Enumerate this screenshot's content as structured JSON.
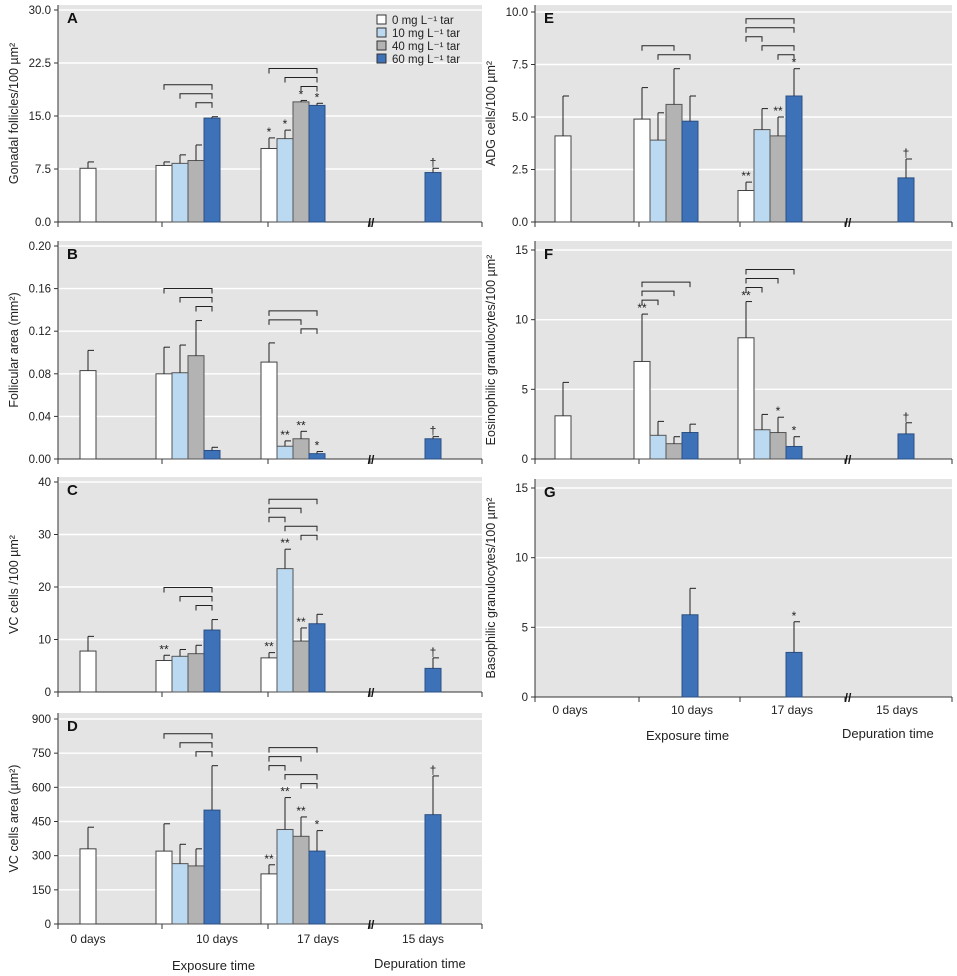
{
  "figure": {
    "legend": {
      "items": [
        {
          "label": "0 mg L⁻¹ tar",
          "color": "#ffffff"
        },
        {
          "label": "10 mg L⁻¹ tar",
          "color": "#bcd9f2"
        },
        {
          "label": "40 mg L⁻¹ tar",
          "color": "#b3b3b3"
        },
        {
          "label": "60 mg L⁻¹ tar",
          "color": "#3e72b8"
        }
      ]
    },
    "x_categories": [
      "0 days",
      "10 days",
      "17 days",
      "15 days"
    ],
    "x_title_exposure": "Exposure time",
    "x_title_depuration": "Depuration time",
    "axis_break_mark": "//"
  },
  "chart_data": [
    {
      "type": "bar",
      "panel": "A",
      "ylabel": "Gonadal follicles/100 µm²",
      "ylim": [
        0,
        30
      ],
      "yticks": [
        "0.0",
        "7.5",
        "15.0",
        "22.5",
        "30.0"
      ],
      "categories": [
        "0 days",
        "10 days",
        "17 days",
        "15 days"
      ],
      "series": [
        {
          "name": "0 mg L⁻¹ tar",
          "values": [
            7.6,
            8.0,
            10.4,
            null
          ],
          "errors": [
            0.9,
            0.5,
            1.5,
            null
          ],
          "marks": [
            "",
            "",
            "*",
            ""
          ]
        },
        {
          "name": "10 mg L⁻¹ tar",
          "values": [
            null,
            8.3,
            11.8,
            null
          ],
          "errors": [
            null,
            1.2,
            1.2,
            null
          ],
          "marks": [
            "",
            "",
            "*",
            ""
          ]
        },
        {
          "name": "40 mg L⁻¹ tar",
          "values": [
            null,
            8.7,
            17.0,
            null
          ],
          "errors": [
            null,
            2.2,
            0.2,
            null
          ],
          "marks": [
            "",
            "",
            "*",
            ""
          ]
        },
        {
          "name": "60 mg L⁻¹ tar",
          "values": [
            null,
            14.7,
            16.5,
            7.0
          ],
          "errors": [
            null,
            0.2,
            0.3,
            0.6
          ],
          "marks": [
            "",
            "",
            "*",
            "†"
          ]
        }
      ],
      "brackets": [
        [
          1,
          0,
          3,
          0
        ],
        [
          1,
          1,
          3,
          1
        ],
        [
          1,
          2,
          3,
          2
        ],
        [
          2,
          0,
          3,
          0
        ],
        [
          2,
          1,
          3,
          1
        ],
        [
          2,
          2,
          3,
          2
        ]
      ]
    },
    {
      "type": "bar",
      "panel": "B",
      "ylabel": "Follicular area (mm²)",
      "ylim": [
        0,
        0.2
      ],
      "yticks": [
        "0.00",
        "0.04",
        "0.08",
        "0.12",
        "0.16",
        "0.20"
      ],
      "categories": [
        "0 days",
        "10 days",
        "17 days",
        "15 days"
      ],
      "series": [
        {
          "name": "0 mg L⁻¹ tar",
          "values": [
            0.083,
            0.08,
            0.091,
            null
          ],
          "errors": [
            0.019,
            0.025,
            0.018,
            null
          ],
          "marks": [
            "",
            "",
            "",
            ""
          ]
        },
        {
          "name": "10 mg L⁻¹ tar",
          "values": [
            null,
            0.081,
            0.012,
            null
          ],
          "errors": [
            null,
            0.026,
            0.005,
            null
          ],
          "marks": [
            "",
            "",
            "**",
            ""
          ]
        },
        {
          "name": "40 mg L⁻¹ tar",
          "values": [
            null,
            0.097,
            0.019,
            null
          ],
          "errors": [
            null,
            0.033,
            0.007,
            null
          ],
          "marks": [
            "",
            "",
            "**",
            ""
          ]
        },
        {
          "name": "60 mg L⁻¹ tar",
          "values": [
            null,
            0.008,
            0.005,
            0.019
          ],
          "errors": [
            null,
            0.003,
            0.002,
            0.002
          ],
          "marks": [
            "",
            "",
            "*",
            "†"
          ]
        }
      ],
      "brackets": [
        [
          1,
          0,
          3,
          0
        ],
        [
          1,
          1,
          3,
          1
        ],
        [
          1,
          2,
          3,
          2
        ],
        [
          2,
          0,
          3,
          0
        ],
        [
          2,
          0,
          2,
          1
        ],
        [
          2,
          2,
          3,
          2
        ]
      ]
    },
    {
      "type": "bar",
      "panel": "C",
      "ylabel": "VC  cells /100 µm²",
      "ylim": [
        0,
        40
      ],
      "yticks": [
        "0",
        "10",
        "20",
        "30",
        "40"
      ],
      "categories": [
        "0 days",
        "10 days",
        "17 days",
        "15 days"
      ],
      "series": [
        {
          "name": "0 mg L⁻¹ tar",
          "values": [
            7.8,
            6.0,
            6.5,
            null
          ],
          "errors": [
            2.8,
            1.0,
            1.0,
            null
          ],
          "marks": [
            "",
            "**",
            "**",
            ""
          ]
        },
        {
          "name": "10 mg L⁻¹ tar",
          "values": [
            null,
            6.8,
            23.5,
            null
          ],
          "errors": [
            null,
            1.3,
            3.7,
            null
          ],
          "marks": [
            "",
            "",
            "**",
            ""
          ]
        },
        {
          "name": "40 mg L⁻¹ tar",
          "values": [
            null,
            7.3,
            9.7,
            null
          ],
          "errors": [
            null,
            1.6,
            2.5,
            null
          ],
          "marks": [
            "",
            "",
            "**",
            ""
          ]
        },
        {
          "name": "60 mg L⁻¹ tar",
          "values": [
            null,
            11.8,
            13.0,
            4.5
          ],
          "errors": [
            null,
            2.0,
            1.8,
            2.0
          ],
          "marks": [
            "",
            "",
            "",
            "†"
          ]
        }
      ],
      "brackets": [
        [
          1,
          0,
          3,
          0
        ],
        [
          1,
          1,
          3,
          1
        ],
        [
          1,
          2,
          3,
          2
        ],
        [
          2,
          0,
          3,
          0
        ],
        [
          2,
          0,
          2,
          1
        ],
        [
          2,
          0,
          1,
          2
        ],
        [
          2,
          1,
          3,
          1
        ],
        [
          2,
          2,
          3,
          2
        ]
      ]
    },
    {
      "type": "bar",
      "panel": "D",
      "ylabel": "VC cells area (µm²)",
      "ylim": [
        0,
        900
      ],
      "yticks": [
        "0",
        "150",
        "300",
        "450",
        "600",
        "750",
        "900"
      ],
      "categories": [
        "0 days",
        "10 days",
        "17 days",
        "15 days"
      ],
      "series": [
        {
          "name": "0 mg L⁻¹ tar",
          "values": [
            330,
            320,
            220,
            null
          ],
          "errors": [
            95,
            120,
            40,
            null
          ],
          "marks": [
            "",
            "",
            "**",
            ""
          ]
        },
        {
          "name": "10 mg L⁻¹ tar",
          "values": [
            null,
            265,
            415,
            null
          ],
          "errors": [
            null,
            85,
            140,
            null
          ],
          "marks": [
            "",
            "",
            "**",
            ""
          ]
        },
        {
          "name": "40 mg L⁻¹ tar",
          "values": [
            null,
            255,
            385,
            null
          ],
          "errors": [
            null,
            75,
            85,
            null
          ],
          "marks": [
            "",
            "",
            "**",
            ""
          ]
        },
        {
          "name": "60 mg L⁻¹ tar",
          "values": [
            null,
            500,
            320,
            480
          ],
          "errors": [
            null,
            195,
            90,
            170
          ],
          "marks": [
            "",
            "",
            "*",
            "†"
          ]
        }
      ],
      "brackets": [
        [
          1,
          0,
          3,
          0
        ],
        [
          1,
          1,
          3,
          1
        ],
        [
          1,
          2,
          3,
          2
        ],
        [
          2,
          0,
          3,
          0
        ],
        [
          2,
          0,
          2,
          1
        ],
        [
          2,
          0,
          1,
          2
        ],
        [
          2,
          1,
          3,
          1
        ],
        [
          2,
          2,
          3,
          2
        ]
      ]
    },
    {
      "type": "bar",
      "panel": "E",
      "ylabel": "ADG  cells/100 µm²",
      "ylim": [
        0,
        10
      ],
      "yticks": [
        "0.0",
        "2.5",
        "5.0",
        "7.5",
        "10.0"
      ],
      "categories": [
        "0 days",
        "10 days",
        "17 days",
        "15 days"
      ],
      "series": [
        {
          "name": "0 mg L⁻¹ tar",
          "values": [
            4.1,
            4.9,
            1.5,
            null
          ],
          "errors": [
            1.9,
            1.5,
            0.4,
            null
          ],
          "marks": [
            "",
            "",
            "**",
            ""
          ]
        },
        {
          "name": "10 mg L⁻¹ tar",
          "values": [
            null,
            3.9,
            4.4,
            null
          ],
          "errors": [
            null,
            1.3,
            1.0,
            null
          ],
          "marks": [
            "",
            "",
            "",
            ""
          ]
        },
        {
          "name": "40 mg L⁻¹ tar",
          "values": [
            null,
            5.6,
            4.1,
            null
          ],
          "errors": [
            null,
            1.7,
            0.9,
            null
          ],
          "marks": [
            "",
            "",
            "**",
            ""
          ]
        },
        {
          "name": "60 mg L⁻¹ tar",
          "values": [
            null,
            4.8,
            6.0,
            2.1
          ],
          "errors": [
            null,
            1.2,
            1.3,
            0.9
          ],
          "marks": [
            "",
            "",
            "*",
            "†"
          ]
        }
      ],
      "brackets": [
        [
          1,
          0,
          2,
          0
        ],
        [
          1,
          1,
          3,
          0
        ],
        [
          2,
          0,
          3,
          0
        ],
        [
          2,
          0,
          3,
          1
        ],
        [
          2,
          0,
          1,
          2
        ],
        [
          2,
          1,
          3,
          2
        ],
        [
          2,
          2,
          3,
          2
        ]
      ]
    },
    {
      "type": "bar",
      "panel": "F",
      "ylabel": "Eosinophilic granulocytes/100 µm²",
      "ylim": [
        0,
        15
      ],
      "yticks": [
        "0",
        "5",
        "10",
        "15"
      ],
      "categories": [
        "0 days",
        "10 days",
        "17 days",
        "15 days"
      ],
      "series": [
        {
          "name": "0 mg L⁻¹ tar",
          "values": [
            3.1,
            7.0,
            8.7,
            null
          ],
          "errors": [
            2.4,
            3.4,
            2.6,
            null
          ],
          "marks": [
            "",
            "**",
            "**",
            ""
          ]
        },
        {
          "name": "10 mg L⁻¹ tar",
          "values": [
            null,
            1.7,
            2.1,
            null
          ],
          "errors": [
            null,
            1.0,
            1.1,
            null
          ],
          "marks": [
            "",
            "",
            "",
            ""
          ]
        },
        {
          "name": "40 mg L⁻¹ tar",
          "values": [
            null,
            1.1,
            1.9,
            null
          ],
          "errors": [
            null,
            0.5,
            1.1,
            null
          ],
          "marks": [
            "",
            "",
            "*",
            ""
          ]
        },
        {
          "name": "60 mg L⁻¹ tar",
          "values": [
            null,
            1.9,
            0.9,
            1.8
          ],
          "errors": [
            null,
            0.6,
            0.7,
            0.8
          ],
          "marks": [
            "",
            "",
            "*",
            "†"
          ]
        }
      ],
      "brackets": [
        [
          1,
          0,
          3,
          0
        ],
        [
          1,
          0,
          2,
          1
        ],
        [
          1,
          0,
          1,
          2
        ],
        [
          2,
          0,
          3,
          0
        ],
        [
          2,
          0,
          2,
          1
        ],
        [
          2,
          0,
          1,
          2
        ]
      ]
    },
    {
      "type": "bar",
      "panel": "G",
      "ylabel": "Basophilic granulocytes/100 µm²",
      "ylim": [
        0,
        15
      ],
      "yticks": [
        "0",
        "5",
        "10",
        "15"
      ],
      "categories": [
        "0 days",
        "10 days",
        "17 days",
        "15 days"
      ],
      "series": [
        {
          "name": "0 mg L⁻¹ tar",
          "values": [
            null,
            null,
            null,
            null
          ],
          "errors": [
            null,
            null,
            null,
            null
          ],
          "marks": [
            "",
            "",
            "",
            ""
          ]
        },
        {
          "name": "10 mg L⁻¹ tar",
          "values": [
            null,
            null,
            null,
            null
          ],
          "errors": [
            null,
            null,
            null,
            null
          ],
          "marks": [
            "",
            "",
            "",
            ""
          ]
        },
        {
          "name": "40 mg L⁻¹ tar",
          "values": [
            null,
            null,
            null,
            null
          ],
          "errors": [
            null,
            null,
            null,
            null
          ],
          "marks": [
            "",
            "",
            "",
            ""
          ]
        },
        {
          "name": "60 mg L⁻¹ tar",
          "values": [
            null,
            5.9,
            3.2,
            null
          ],
          "errors": [
            null,
            1.9,
            2.2,
            null
          ],
          "marks": [
            "",
            "",
            "*",
            ""
          ]
        }
      ],
      "brackets": []
    }
  ]
}
